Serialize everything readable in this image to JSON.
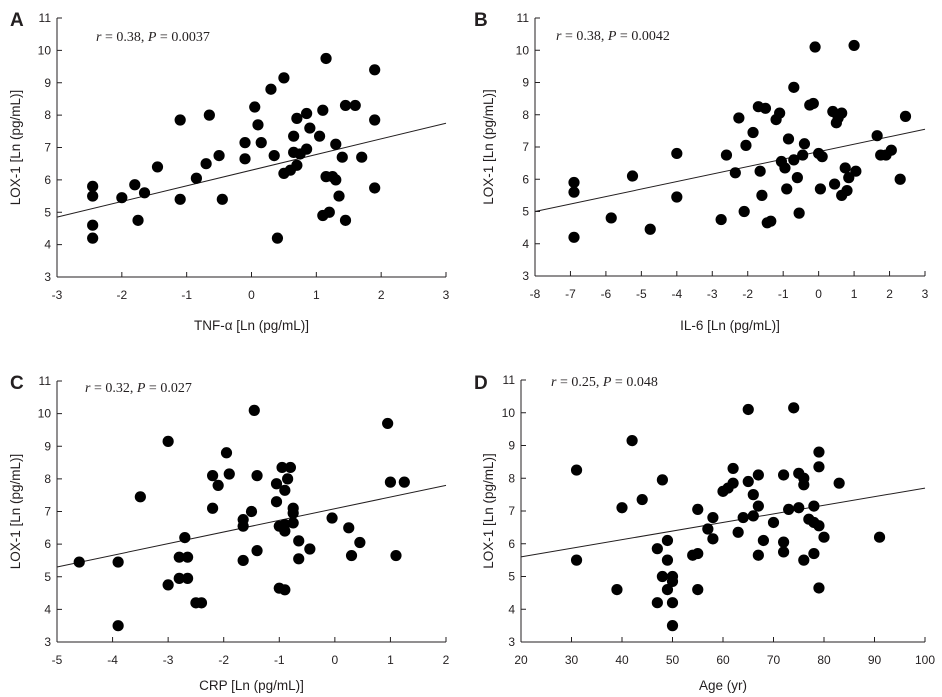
{
  "chart_data": [
    {
      "type": "scatter",
      "panel": "A",
      "stat_r": "0.38",
      "stat_p": "0.0037",
      "xlabel": "TNF-α [Ln (pg/mL)]",
      "ylabel": "LOX-1 [Ln (pg/mL)]",
      "xlim": [
        -3,
        3
      ],
      "ylim": [
        3,
        11
      ],
      "xticks": [
        "-3",
        "-2",
        "-1",
        "0",
        "1",
        "2",
        "3"
      ],
      "yticks": [
        "3",
        "4",
        "5",
        "6",
        "7",
        "8",
        "9",
        "10",
        "11"
      ],
      "fit_line": {
        "x": [
          -3,
          3
        ],
        "y": [
          4.85,
          7.75
        ]
      },
      "points": [
        [
          -2.45,
          5.8
        ],
        [
          -2.45,
          5.5
        ],
        [
          -2.45,
          4.6
        ],
        [
          -2.45,
          4.2
        ],
        [
          -2.0,
          5.45
        ],
        [
          -1.8,
          5.85
        ],
        [
          -1.75,
          4.75
        ],
        [
          -1.65,
          5.6
        ],
        [
          -1.45,
          6.4
        ],
        [
          -1.1,
          7.85
        ],
        [
          -1.1,
          5.4
        ],
        [
          -0.85,
          6.05
        ],
        [
          -0.7,
          6.5
        ],
        [
          -0.65,
          8.0
        ],
        [
          -0.5,
          6.75
        ],
        [
          -0.45,
          5.4
        ],
        [
          -0.1,
          7.15
        ],
        [
          -0.1,
          6.65
        ],
        [
          0.05,
          8.25
        ],
        [
          0.1,
          7.7
        ],
        [
          0.15,
          7.15
        ],
        [
          0.3,
          8.8
        ],
        [
          0.35,
          6.75
        ],
        [
          0.4,
          4.2
        ],
        [
          0.5,
          9.15
        ],
        [
          0.5,
          6.2
        ],
        [
          0.6,
          6.3
        ],
        [
          0.65,
          7.35
        ],
        [
          0.65,
          6.85
        ],
        [
          0.7,
          7.9
        ],
        [
          0.7,
          6.45
        ],
        [
          0.75,
          6.8
        ],
        [
          0.85,
          6.95
        ],
        [
          0.85,
          8.05
        ],
        [
          0.9,
          7.6
        ],
        [
          1.05,
          7.35
        ],
        [
          1.1,
          8.15
        ],
        [
          1.1,
          4.9
        ],
        [
          1.15,
          9.75
        ],
        [
          1.15,
          6.1
        ],
        [
          1.2,
          5.0
        ],
        [
          1.25,
          6.1
        ],
        [
          1.3,
          6.0
        ],
        [
          1.3,
          7.1
        ],
        [
          1.35,
          5.5
        ],
        [
          1.4,
          6.7
        ],
        [
          1.45,
          8.3
        ],
        [
          1.45,
          4.75
        ],
        [
          1.6,
          8.3
        ],
        [
          1.7,
          6.7
        ],
        [
          1.9,
          9.4
        ],
        [
          1.9,
          7.85
        ],
        [
          1.9,
          5.75
        ]
      ]
    },
    {
      "type": "scatter",
      "panel": "B",
      "stat_r": "0.38",
      "stat_p": "0.0042",
      "xlabel": "IL-6 [Ln (pg/mL)]",
      "ylabel": "LOX-1 [Ln (pg/mL)]",
      "xlim": [
        -8,
        3
      ],
      "ylim": [
        3,
        11
      ],
      "xticks": [
        "-8",
        "-7",
        "-6",
        "-5",
        "-4",
        "-3",
        "-2",
        "-1",
        "0",
        "1",
        "2",
        "3"
      ],
      "yticks": [
        "3",
        "4",
        "5",
        "6",
        "7",
        "8",
        "9",
        "10",
        "11"
      ],
      "fit_line": {
        "x": [
          -8,
          3
        ],
        "y": [
          5.0,
          7.55
        ]
      },
      "points": [
        [
          -6.9,
          5.9
        ],
        [
          -6.9,
          5.6
        ],
        [
          -6.9,
          4.2
        ],
        [
          -5.85,
          4.8
        ],
        [
          -5.25,
          6.1
        ],
        [
          -4.75,
          4.45
        ],
        [
          -4.0,
          6.8
        ],
        [
          -4.0,
          5.45
        ],
        [
          -2.75,
          4.75
        ],
        [
          -2.6,
          6.75
        ],
        [
          -2.35,
          6.2
        ],
        [
          -2.25,
          7.9
        ],
        [
          -2.1,
          5.0
        ],
        [
          -2.05,
          7.05
        ],
        [
          -1.85,
          7.45
        ],
        [
          -1.7,
          8.25
        ],
        [
          -1.65,
          6.25
        ],
        [
          -1.6,
          5.5
        ],
        [
          -1.5,
          8.2
        ],
        [
          -1.45,
          4.65
        ],
        [
          -1.35,
          4.7
        ],
        [
          -1.2,
          7.85
        ],
        [
          -1.1,
          8.05
        ],
        [
          -1.05,
          6.55
        ],
        [
          -0.95,
          6.35
        ],
        [
          -0.9,
          5.7
        ],
        [
          -0.85,
          7.25
        ],
        [
          -0.7,
          6.6
        ],
        [
          -0.7,
          8.85
        ],
        [
          -0.6,
          6.05
        ],
        [
          -0.55,
          4.95
        ],
        [
          -0.45,
          6.75
        ],
        [
          -0.4,
          7.1
        ],
        [
          -0.25,
          8.3
        ],
        [
          -0.15,
          8.35
        ],
        [
          -0.1,
          10.1
        ],
        [
          0.0,
          6.8
        ],
        [
          0.05,
          5.7
        ],
        [
          0.1,
          6.7
        ],
        [
          0.4,
          8.1
        ],
        [
          0.45,
          5.85
        ],
        [
          0.5,
          7.75
        ],
        [
          0.55,
          7.9
        ],
        [
          0.65,
          8.05
        ],
        [
          0.65,
          5.5
        ],
        [
          0.75,
          6.35
        ],
        [
          0.8,
          5.65
        ],
        [
          0.85,
          6.05
        ],
        [
          1.0,
          10.15
        ],
        [
          1.05,
          6.25
        ],
        [
          1.65,
          7.35
        ],
        [
          1.75,
          6.75
        ],
        [
          1.9,
          6.75
        ],
        [
          2.05,
          6.9
        ],
        [
          2.3,
          6.0
        ],
        [
          2.45,
          7.95
        ]
      ]
    },
    {
      "type": "scatter",
      "panel": "C",
      "stat_r": "0.32",
      "stat_p": "0.027",
      "xlabel": "CRP [Ln (pg/mL)]",
      "ylabel": "LOX-1 [Ln (pg/mL)]",
      "xlim": [
        -5,
        2
      ],
      "ylim": [
        3,
        11
      ],
      "xticks": [
        "-5",
        "-4",
        "-3",
        "-2",
        "-1",
        "0",
        "1",
        "2"
      ],
      "yticks": [
        "3",
        "4",
        "5",
        "6",
        "7",
        "8",
        "9",
        "10",
        "11"
      ],
      "fit_line": {
        "x": [
          -5,
          2
        ],
        "y": [
          5.3,
          7.8
        ]
      },
      "points": [
        [
          -4.6,
          5.45
        ],
        [
          -3.9,
          5.45
        ],
        [
          -3.9,
          3.5
        ],
        [
          -3.5,
          7.45
        ],
        [
          -3.0,
          9.15
        ],
        [
          -3.0,
          4.75
        ],
        [
          -2.8,
          5.6
        ],
        [
          -2.8,
          4.95
        ],
        [
          -2.7,
          6.2
        ],
        [
          -2.65,
          5.6
        ],
        [
          -2.65,
          4.95
        ],
        [
          -2.5,
          4.2
        ],
        [
          -2.4,
          4.2
        ],
        [
          -2.2,
          8.1
        ],
        [
          -2.2,
          7.1
        ],
        [
          -2.1,
          7.8
        ],
        [
          -1.95,
          8.8
        ],
        [
          -1.9,
          8.15
        ],
        [
          -1.65,
          6.75
        ],
        [
          -1.65,
          6.55
        ],
        [
          -1.65,
          5.5
        ],
        [
          -1.5,
          7.0
        ],
        [
          -1.45,
          10.1
        ],
        [
          -1.4,
          5.8
        ],
        [
          -1.4,
          8.1
        ],
        [
          -1.05,
          7.85
        ],
        [
          -1.05,
          7.3
        ],
        [
          -1.0,
          6.55
        ],
        [
          -1.0,
          4.65
        ],
        [
          -0.95,
          8.35
        ],
        [
          -0.9,
          7.65
        ],
        [
          -0.9,
          6.6
        ],
        [
          -0.9,
          6.4
        ],
        [
          -0.9,
          4.6
        ],
        [
          -0.85,
          8.0
        ],
        [
          -0.8,
          8.35
        ],
        [
          -0.75,
          6.65
        ],
        [
          -0.75,
          7.1
        ],
        [
          -0.75,
          6.95
        ],
        [
          -0.65,
          6.1
        ],
        [
          -0.65,
          5.55
        ],
        [
          -0.45,
          5.85
        ],
        [
          -0.05,
          6.8
        ],
        [
          0.25,
          6.5
        ],
        [
          0.3,
          5.65
        ],
        [
          0.45,
          6.05
        ],
        [
          0.95,
          9.7
        ],
        [
          1.0,
          7.9
        ],
        [
          1.1,
          5.65
        ],
        [
          1.25,
          7.9
        ]
      ]
    },
    {
      "type": "scatter",
      "panel": "D",
      "stat_r": "0.25",
      "stat_p": "0.048",
      "xlabel": "Age (yr)",
      "ylabel": "LOX-1 [Ln (pg/mL)]",
      "xlim": [
        20,
        100
      ],
      "ylim": [
        3,
        11
      ],
      "xticks": [
        "20",
        "30",
        "40",
        "50",
        "60",
        "70",
        "80",
        "90",
        "100"
      ],
      "yticks": [
        "3",
        "4",
        "5",
        "6",
        "7",
        "8",
        "9",
        "10",
        "11"
      ],
      "fit_line": {
        "x": [
          20,
          100
        ],
        "y": [
          5.6,
          7.7
        ]
      },
      "points": [
        [
          31,
          8.25
        ],
        [
          31,
          5.5
        ],
        [
          39,
          4.6
        ],
        [
          40,
          7.1
        ],
        [
          42,
          9.15
        ],
        [
          44,
          7.35
        ],
        [
          47,
          5.85
        ],
        [
          47,
          4.2
        ],
        [
          48,
          7.95
        ],
        [
          48,
          5.0
        ],
        [
          49,
          6.1
        ],
        [
          49,
          4.6
        ],
        [
          49,
          5.5
        ],
        [
          50,
          4.2
        ],
        [
          50,
          5.0
        ],
        [
          50,
          4.85
        ],
        [
          50,
          3.5
        ],
        [
          54,
          5.65
        ],
        [
          55,
          7.05
        ],
        [
          55,
          5.7
        ],
        [
          55,
          4.6
        ],
        [
          57,
          6.45
        ],
        [
          58,
          6.8
        ],
        [
          58,
          6.15
        ],
        [
          60,
          7.6
        ],
        [
          61,
          7.7
        ],
        [
          62,
          8.3
        ],
        [
          62,
          7.85
        ],
        [
          63,
          6.35
        ],
        [
          64,
          6.8
        ],
        [
          65,
          10.1
        ],
        [
          65,
          7.9
        ],
        [
          66,
          7.5
        ],
        [
          66,
          6.85
        ],
        [
          67,
          8.1
        ],
        [
          67,
          7.15
        ],
        [
          67,
          5.65
        ],
        [
          68,
          6.1
        ],
        [
          70,
          6.65
        ],
        [
          72,
          8.1
        ],
        [
          72,
          6.05
        ],
        [
          72,
          5.75
        ],
        [
          73,
          7.05
        ],
        [
          74,
          10.15
        ],
        [
          75,
          8.15
        ],
        [
          75,
          7.1
        ],
        [
          76,
          5.5
        ],
        [
          76,
          7.8
        ],
        [
          76,
          8.0
        ],
        [
          77,
          6.75
        ],
        [
          78,
          6.65
        ],
        [
          78,
          7.15
        ],
        [
          78,
          5.7
        ],
        [
          79,
          8.35
        ],
        [
          79,
          8.8
        ],
        [
          79,
          4.65
        ],
        [
          79,
          6.55
        ],
        [
          80,
          6.2
        ],
        [
          83,
          7.85
        ],
        [
          91,
          6.2
        ]
      ]
    }
  ]
}
